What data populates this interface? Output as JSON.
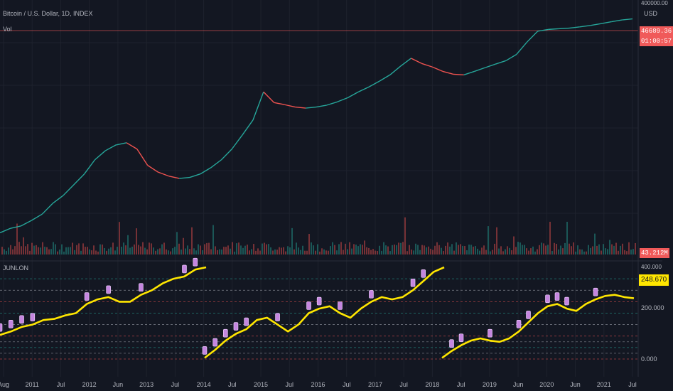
{
  "header": {
    "symbol": "Bitcoin / U.S. Dollar, 1D, INDEX",
    "volume_label": "Vol",
    "indicator_label": "JUNLON"
  },
  "price_axis": {
    "top_label": "400000.00",
    "currency": "USD",
    "last_price": "46689.36",
    "countdown": "01:00:57"
  },
  "volume_axis": {
    "last_volume": "43.212M"
  },
  "indicator_axis": {
    "top_label": "400.000",
    "current_value": "248.670",
    "mid_label": "200.000",
    "bottom_label": "0.000"
  },
  "time_axis": [
    "Aug",
    "2011",
    "Jul",
    "2012",
    "Jun",
    "2013",
    "Jul",
    "2014",
    "Jul",
    "2015",
    "Jul",
    "2016",
    "Jul",
    "2017",
    "Jul",
    "2018",
    "Jul",
    "2019",
    "Jun",
    "2020",
    "Jun",
    "2021",
    "Jul"
  ],
  "colors": {
    "background": "#131722",
    "price_up": "#26a69a",
    "price_down": "#ef5350",
    "indicator_line": "#ffe600",
    "markers": "#c586e0",
    "last_price_line": "#f05a5a"
  },
  "chart_data": {
    "type": "line",
    "scale": "log",
    "series": [
      {
        "values": [
          9,
          12,
          14,
          20,
          30,
          60,
          100,
          200,
          400,
          1000,
          1800,
          2600,
          3000,
          2000,
          700,
          450,
          350,
          300,
          320,
          400,
          600,
          1000,
          2000,
          5000,
          13000,
          80000,
          40000,
          35000,
          30000,
          28000,
          30000,
          34000,
          42000,
          55000,
          80000,
          110000,
          160000,
          240000,
          420000,
          700000,
          500000,
          400000,
          300000,
          250000,
          240000,
          300000,
          380000,
          480000,
          600000,
          900000,
          2000000,
          4000000,
          4500000,
          4700000,
          4900000,
          5300000,
          5800000,
          6500000,
          7400000,
          8300000,
          8900000
        ]
      }
    ]
  },
  "indicator_data": {
    "ylim": [
      0,
      400
    ],
    "segments": [
      [
        105,
        120,
        140,
        150,
        170,
        175,
        190,
        200,
        240,
        260,
        270,
        250,
        250,
        280,
        300,
        330,
        350,
        360,
        390,
        400
      ],
      [
        5,
        40,
        80,
        110,
        130,
        170,
        180,
        150,
        120,
        150,
        200,
        220,
        230,
        200,
        180,
        220,
        250,
        270,
        260,
        270,
        300,
        340,
        380,
        400
      ],
      [
        5,
        35,
        60,
        80,
        90,
        80,
        75,
        90,
        120,
        160,
        200,
        230,
        240,
        220,
        210,
        240,
        260,
        275,
        280,
        270,
        265
      ]
    ],
    "marker_series": [
      [
        0,
        1,
        2,
        3,
        8,
        10,
        13,
        17,
        18
      ],
      [
        0,
        1,
        2,
        3,
        4,
        7,
        10,
        11,
        13,
        16,
        20,
        21
      ],
      [
        1,
        2,
        5,
        8,
        9,
        11,
        12,
        13,
        16
      ]
    ]
  }
}
